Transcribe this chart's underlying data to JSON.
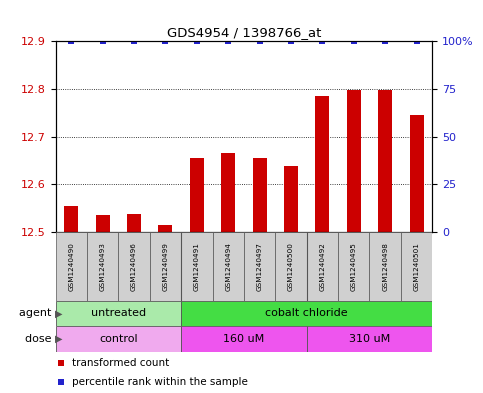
{
  "title": "GDS4954 / 1398766_at",
  "samples": [
    "GSM1240490",
    "GSM1240493",
    "GSM1240496",
    "GSM1240499",
    "GSM1240491",
    "GSM1240494",
    "GSM1240497",
    "GSM1240500",
    "GSM1240492",
    "GSM1240495",
    "GSM1240498",
    "GSM1240501"
  ],
  "transformed_counts": [
    12.555,
    12.535,
    12.538,
    12.515,
    12.655,
    12.665,
    12.655,
    12.638,
    12.785,
    12.798,
    12.798,
    12.745
  ],
  "percentile_ranks": [
    100,
    100,
    100,
    100,
    100,
    100,
    100,
    100,
    100,
    100,
    100,
    100
  ],
  "ymin": 12.5,
  "ymax": 12.9,
  "y_ticks": [
    12.5,
    12.6,
    12.7,
    12.8,
    12.9
  ],
  "y2_ticks": [
    0,
    25,
    50,
    75,
    100
  ],
  "y2_labels": [
    "0",
    "25",
    "50",
    "75",
    "100%"
  ],
  "bar_color": "#cc0000",
  "dot_color": "#2222cc",
  "bar_base": 12.5,
  "agent_groups": [
    {
      "label": "untreated",
      "start": 0,
      "end": 4,
      "color": "#aaeaaa"
    },
    {
      "label": "cobalt chloride",
      "start": 4,
      "end": 12,
      "color": "#44dd44"
    }
  ],
  "dose_groups": [
    {
      "label": "control",
      "start": 0,
      "end": 4,
      "color": "#f0aaee"
    },
    {
      "label": "160 uM",
      "start": 4,
      "end": 8,
      "color": "#ee55ee"
    },
    {
      "label": "310 uM",
      "start": 8,
      "end": 12,
      "color": "#ee55ee"
    }
  ],
  "legend_items": [
    {
      "color": "#cc0000",
      "label": "transformed count"
    },
    {
      "color": "#2222cc",
      "label": "percentile rank within the sample"
    }
  ],
  "left_label_color": "#cc0000",
  "right_label_color": "#2222cc"
}
